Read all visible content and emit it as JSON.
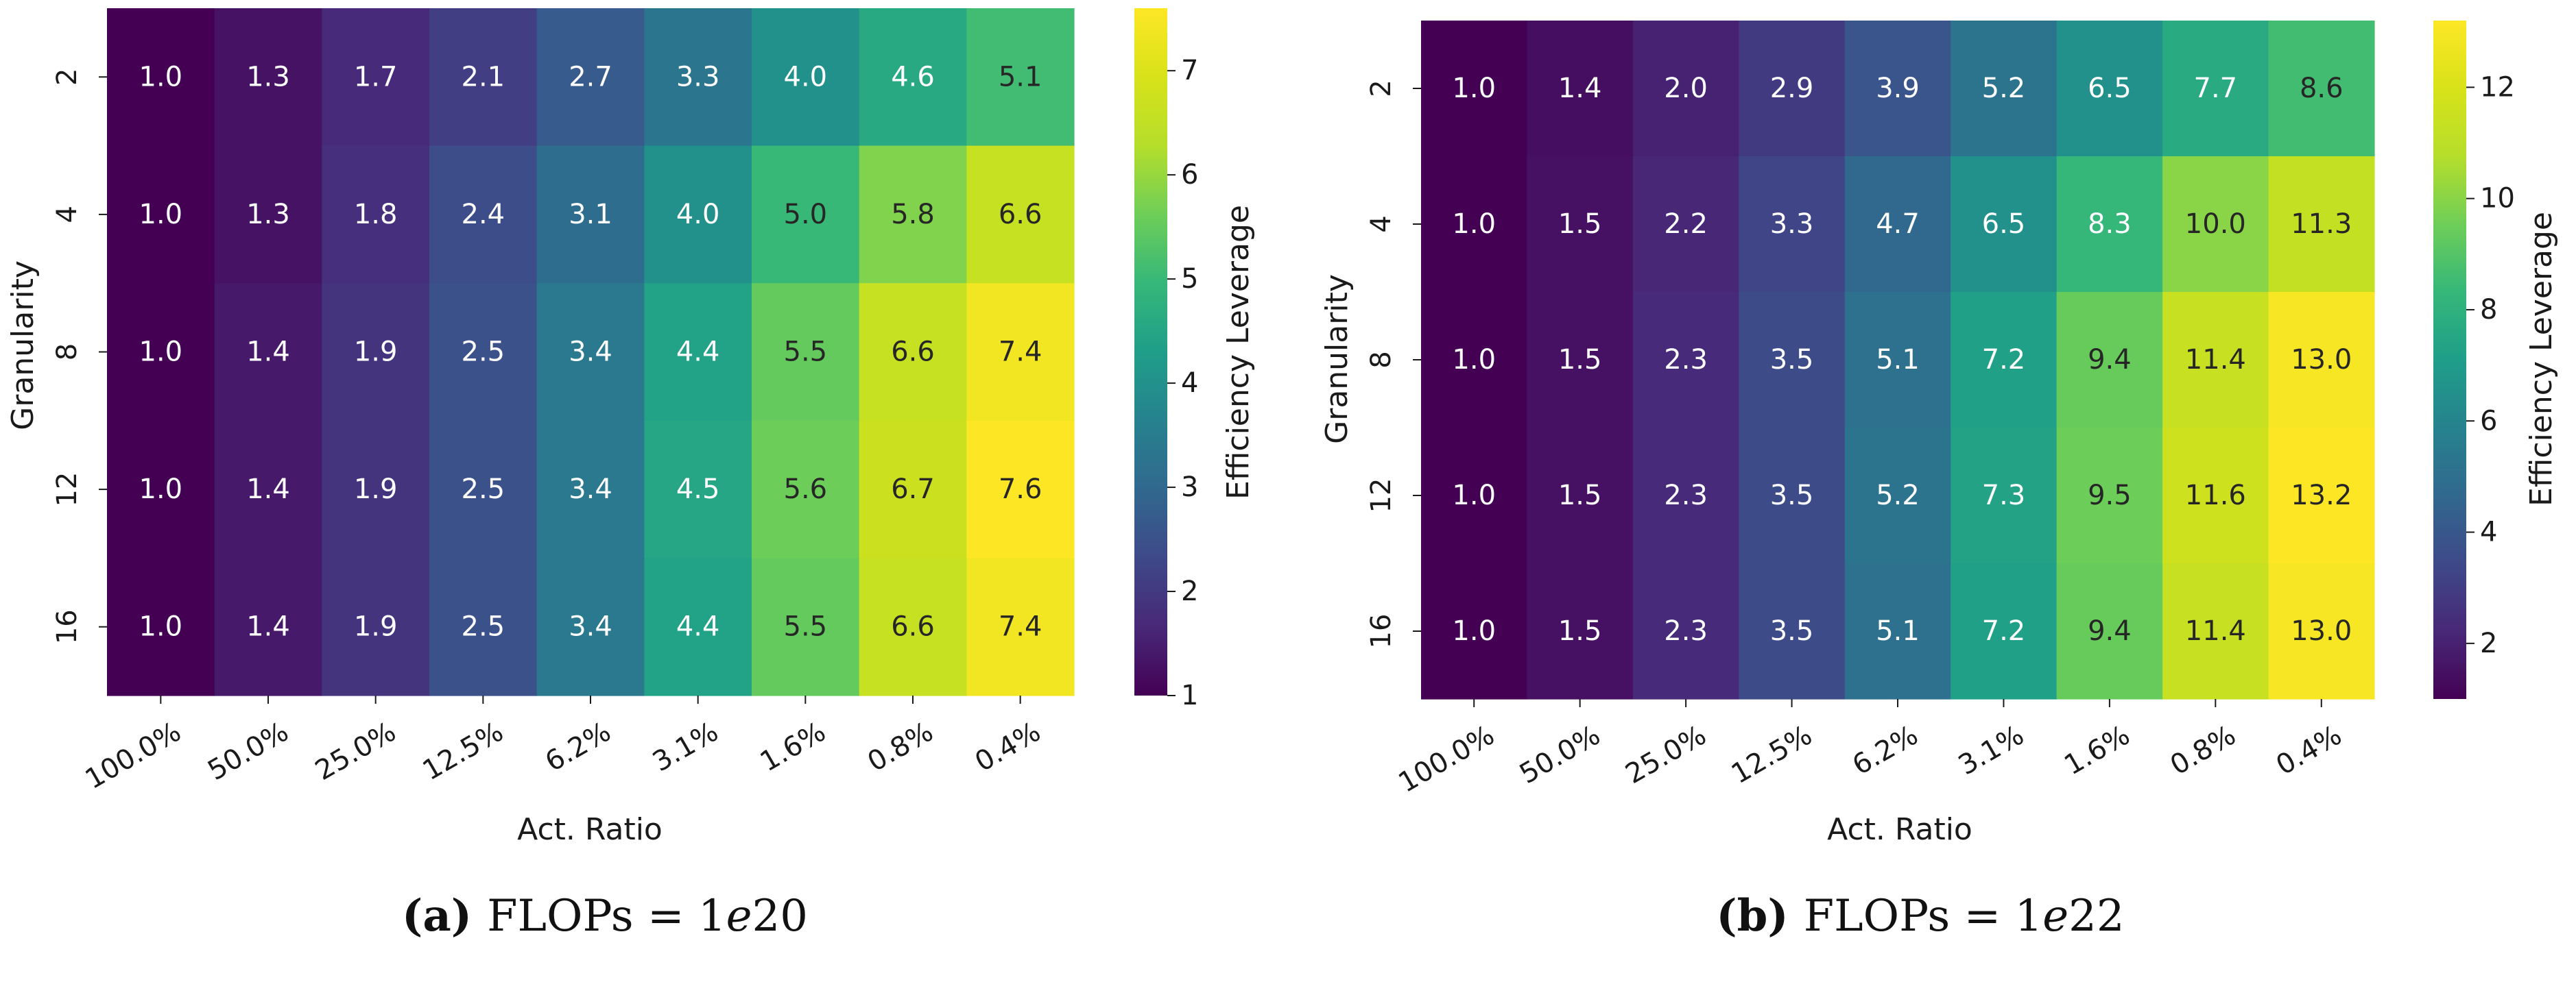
{
  "chart_data": [
    {
      "type": "heatmap",
      "caption": {
        "tag": "(a)",
        "text": "FLOPs = 1",
        "exp_italic": "e",
        "exp_num": "20"
      },
      "xlabel": "Act. Ratio",
      "ylabel": "Granularity",
      "x_categories": [
        "100.0%",
        "50.0%",
        "25.0%",
        "12.5%",
        "6.2%",
        "3.1%",
        "1.6%",
        "0.8%",
        "0.4%"
      ],
      "y_categories": [
        "2",
        "4",
        "8",
        "12",
        "16"
      ],
      "values": [
        [
          1.0,
          1.3,
          1.7,
          2.1,
          2.7,
          3.3,
          4.0,
          4.6,
          5.1
        ],
        [
          1.0,
          1.3,
          1.8,
          2.4,
          3.1,
          4.0,
          5.0,
          5.8,
          6.6
        ],
        [
          1.0,
          1.4,
          1.9,
          2.5,
          3.4,
          4.4,
          5.5,
          6.6,
          7.4
        ],
        [
          1.0,
          1.4,
          1.9,
          2.5,
          3.4,
          4.5,
          5.6,
          6.7,
          7.6
        ],
        [
          1.0,
          1.4,
          1.9,
          2.5,
          3.4,
          4.4,
          5.5,
          6.6,
          7.4
        ]
      ],
      "colorbar": {
        "label": "Efficiency Leverage",
        "range": [
          1.0,
          7.6
        ],
        "ticks": [
          "1",
          "2",
          "3",
          "4",
          "5",
          "6",
          "7"
        ]
      }
    },
    {
      "type": "heatmap",
      "caption": {
        "tag": "(b)",
        "text": "FLOPs = 1",
        "exp_italic": "e",
        "exp_num": "22"
      },
      "xlabel": "Act. Ratio",
      "ylabel": "Granularity",
      "x_categories": [
        "100.0%",
        "50.0%",
        "25.0%",
        "12.5%",
        "6.2%",
        "3.1%",
        "1.6%",
        "0.8%",
        "0.4%"
      ],
      "y_categories": [
        "2",
        "4",
        "8",
        "12",
        "16"
      ],
      "values": [
        [
          1.0,
          1.4,
          2.0,
          2.9,
          3.9,
          5.2,
          6.5,
          7.7,
          8.6
        ],
        [
          1.0,
          1.5,
          2.2,
          3.3,
          4.7,
          6.5,
          8.3,
          10.0,
          11.3
        ],
        [
          1.0,
          1.5,
          2.3,
          3.5,
          5.1,
          7.2,
          9.4,
          11.4,
          13.0
        ],
        [
          1.0,
          1.5,
          2.3,
          3.5,
          5.2,
          7.3,
          9.5,
          11.6,
          13.2
        ],
        [
          1.0,
          1.5,
          2.3,
          3.5,
          5.1,
          7.2,
          9.4,
          11.4,
          13.0
        ]
      ],
      "colorbar": {
        "label": "Efficiency Leverage",
        "range": [
          1.0,
          13.2
        ],
        "ticks": [
          "2",
          "4",
          "6",
          "8",
          "10",
          "12"
        ]
      }
    }
  ]
}
